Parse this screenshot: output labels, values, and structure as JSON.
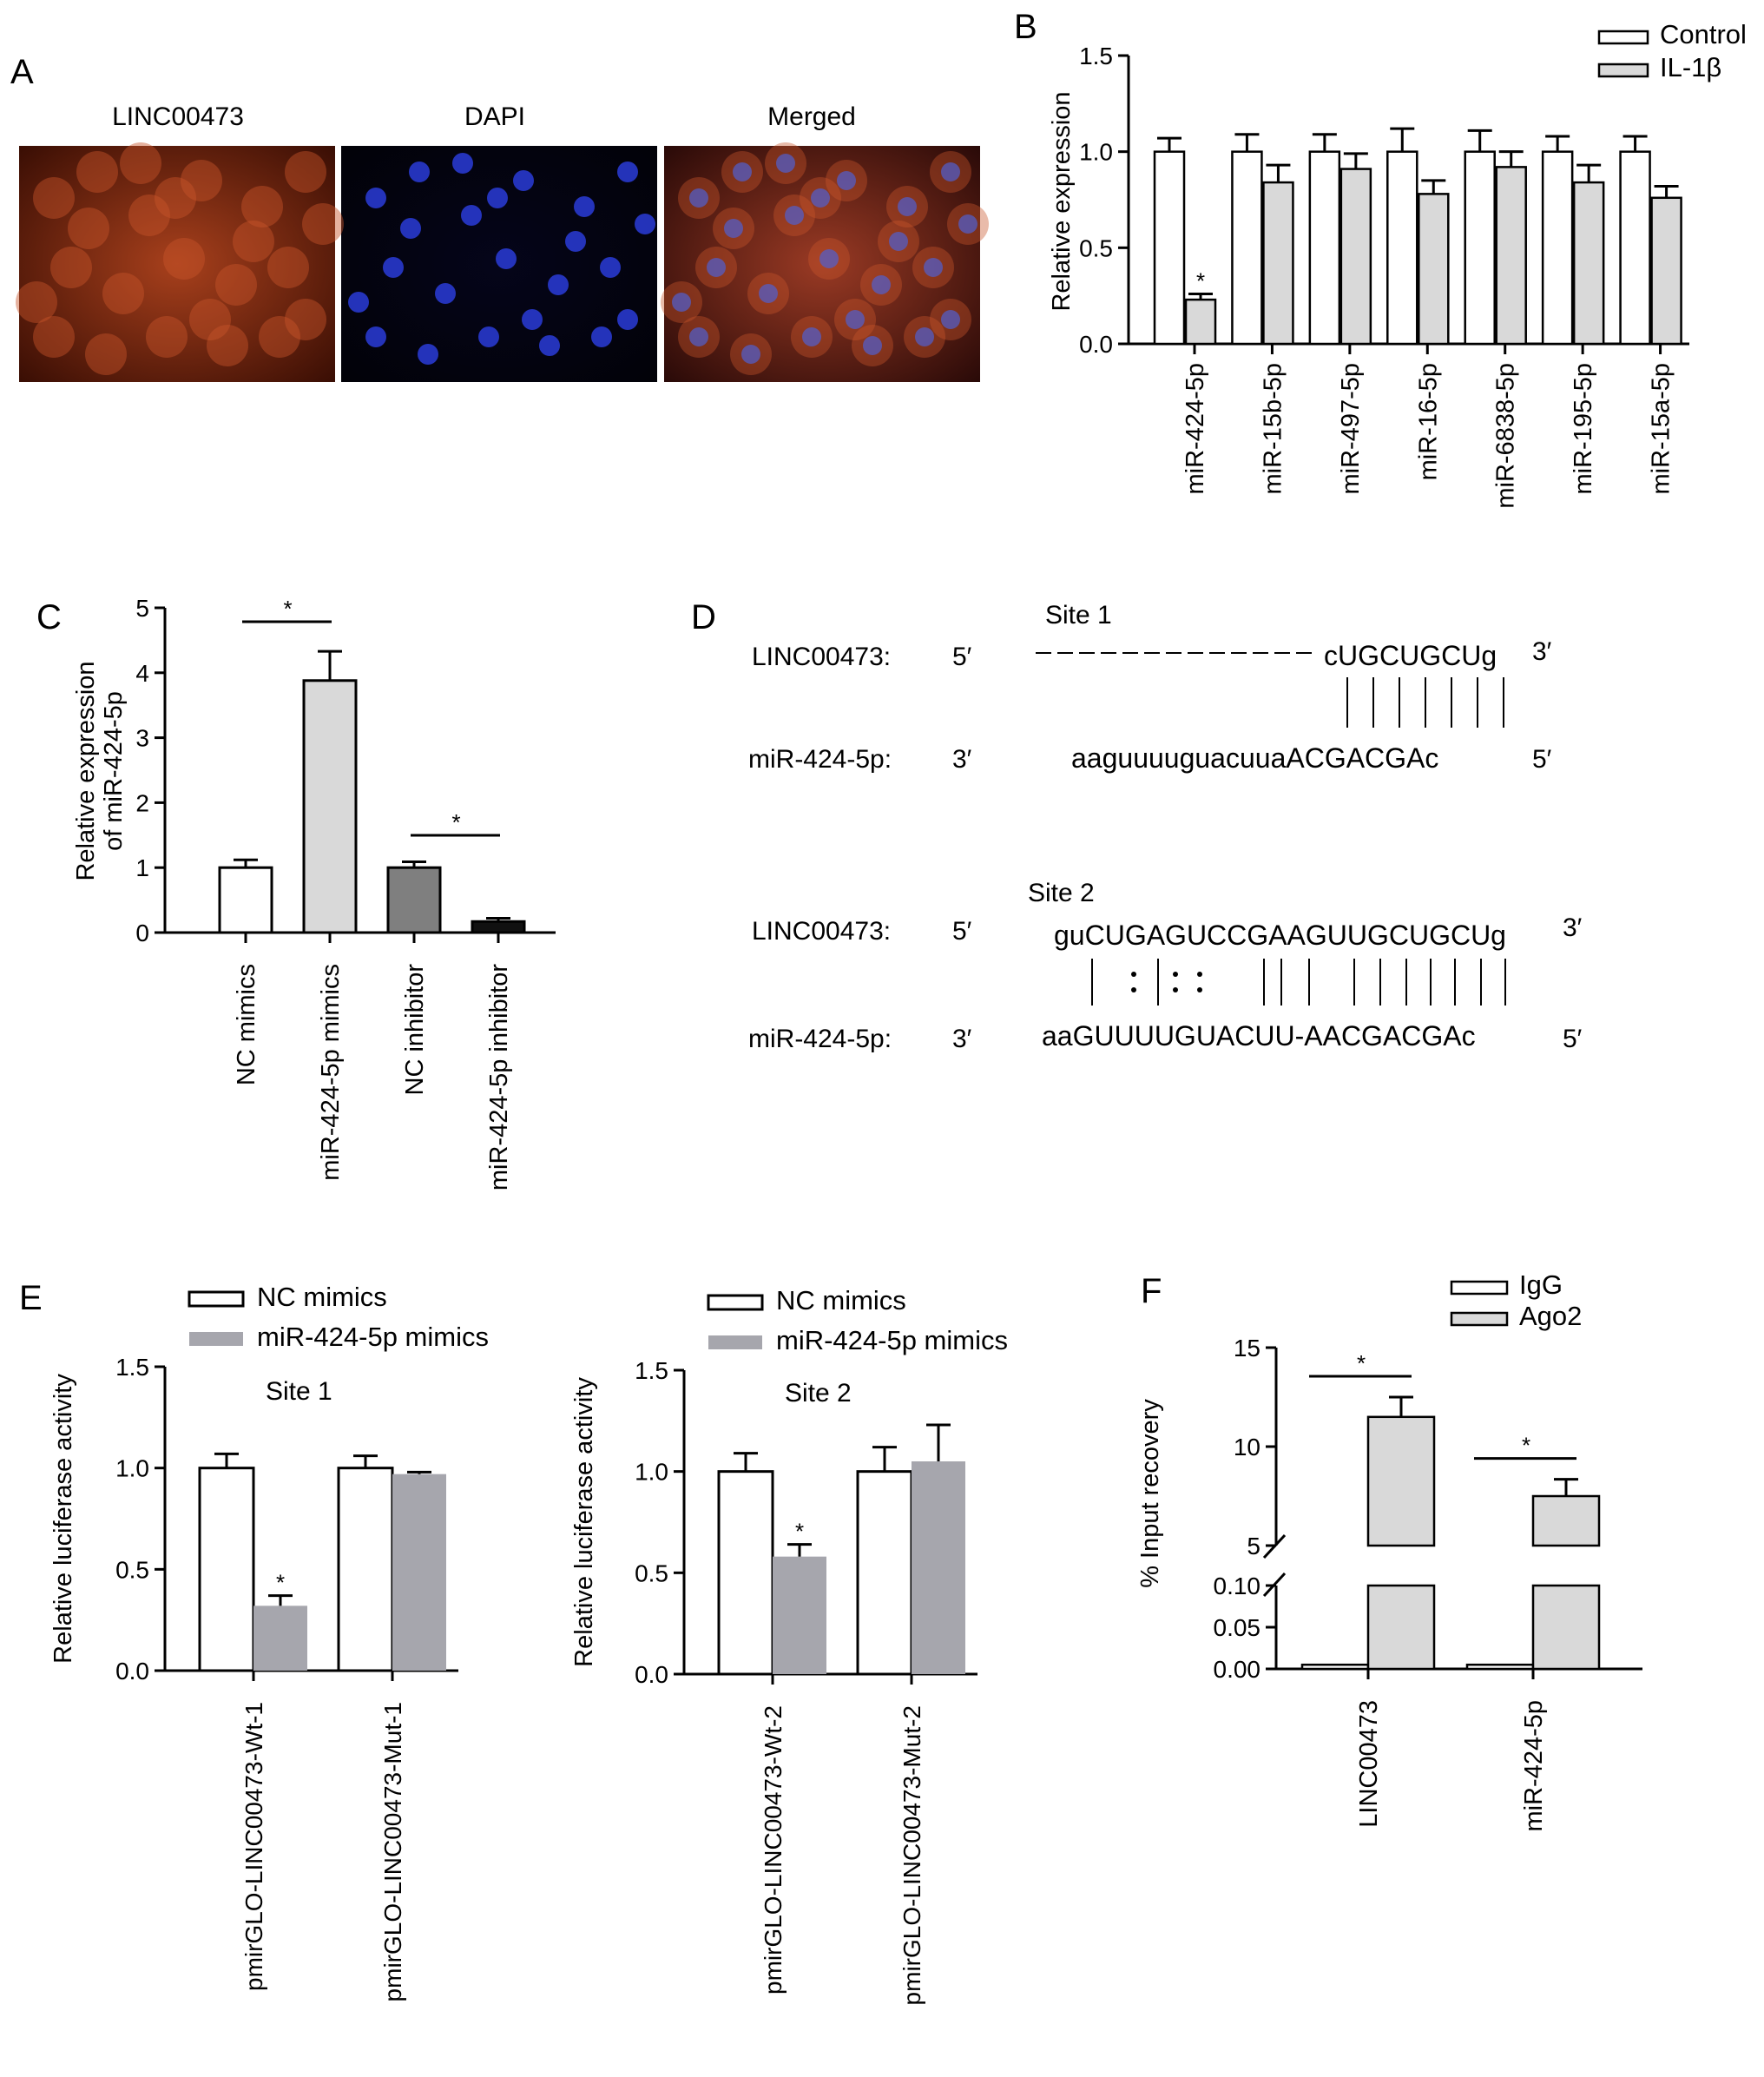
{
  "panels": {
    "A": {
      "letter": "A",
      "image_labels": [
        "LINC00473",
        "DAPI",
        "Merged"
      ],
      "colors": {
        "linc": "#8a2a10",
        "dapi": "#1a2a9a",
        "merged": "#7a2a3a"
      }
    },
    "B": {
      "letter": "B"
    },
    "C": {
      "letter": "C"
    },
    "D": {
      "letter": "D",
      "site1": {
        "title": "Site 1",
        "row1_label": "LINC00473:",
        "row1_end5": "5′",
        "row1_seq": "cUGCUGCUg",
        "row1_end3": "3′",
        "row2_label": "miR-424-5p:",
        "row2_end3": "3′",
        "row2_seq": "aaguuuuguacuuaACGACGAc",
        "row2_end5": "5′"
      },
      "site2": {
        "title": "Site 2",
        "row1_label": "LINC00473:",
        "row1_end5": "5′",
        "row1_seq": "guCUGAGUCCGAAGUUGCUGCUg",
        "row1_end3": "3′",
        "row2_label": "miR-424-5p:",
        "row2_end3": "3′",
        "row2_seq": "aaGUUUUGUACUU-AACGACGAc",
        "row2_end5": "5′"
      }
    },
    "E": {
      "letter": "E"
    },
    "F": {
      "letter": "F"
    }
  },
  "chart_data": [
    {
      "panel": "B",
      "type": "bar",
      "ylabel": "Relative expression",
      "ylim": [
        0,
        1.5
      ],
      "yticks": [
        "0.0",
        "0.5",
        "1.0",
        "1.5"
      ],
      "categories": [
        "miR-424-5p",
        "miR-15b-5p",
        "miR-497-5p",
        "miR-16-5p",
        "miR-6838-5p",
        "miR-195-5p",
        "miR-15a-5p"
      ],
      "series": [
        {
          "name": "Control",
          "values": [
            1.0,
            1.0,
            1.0,
            1.0,
            1.0,
            1.0,
            1.0
          ],
          "errors": [
            0.07,
            0.09,
            0.09,
            0.12,
            0.11,
            0.08,
            0.08
          ],
          "color": "#ffffff"
        },
        {
          "name": "IL-1β",
          "values": [
            0.23,
            0.84,
            0.91,
            0.78,
            0.92,
            0.84,
            0.76
          ],
          "errors": [
            0.03,
            0.09,
            0.08,
            0.07,
            0.08,
            0.09,
            0.06
          ],
          "color": "#d9d9d9"
        }
      ],
      "annotations": [
        {
          "text": "*",
          "category": "miR-424-5p",
          "series": "IL-1β"
        }
      ],
      "legend": "top-right"
    },
    {
      "panel": "C",
      "type": "bar",
      "ylabel_lines": [
        "Relative expression",
        "of miR-424-5p"
      ],
      "ylim": [
        0,
        5
      ],
      "yticks": [
        "0",
        "1",
        "2",
        "3",
        "4",
        "5"
      ],
      "categories": [
        "NC mimics",
        "miR-424-5p mimics",
        "NC inhibitor",
        "miR-424-5p inhibitor"
      ],
      "values": [
        1.0,
        3.88,
        1.0,
        0.17
      ],
      "errors": [
        0.12,
        0.45,
        0.09,
        0.05
      ],
      "colors": [
        "#ffffff",
        "#d9d9d9",
        "#7f7f7f",
        "#111111"
      ],
      "significance": [
        {
          "from": 0,
          "to": 1,
          "text": "*"
        },
        {
          "from": 2,
          "to": 3,
          "text": "*"
        }
      ]
    },
    {
      "panel": "E",
      "type": "bar",
      "title": "Site 1",
      "ylabel": "Relative luciferase activity",
      "ylim": [
        0,
        1.5
      ],
      "yticks": [
        "0.0",
        "0.5",
        "1.0",
        "1.5"
      ],
      "categories": [
        "pmirGLO-LINC00473-Wt-1",
        "pmirGLO-LINC00473-Mut-1"
      ],
      "series": [
        {
          "name": "NC mimics",
          "values": [
            1.0,
            1.0
          ],
          "errors": [
            0.07,
            0.06
          ],
          "color": "#ffffff"
        },
        {
          "name": "miR-424-5p mimics",
          "values": [
            0.32,
            0.97
          ],
          "errors": [
            0.05,
            0.01
          ],
          "color": "#a6a6ad"
        }
      ],
      "annotations": [
        {
          "text": "*",
          "category": "pmirGLO-LINC00473-Wt-1",
          "series": "miR-424-5p mimics"
        }
      ],
      "legend": "top"
    },
    {
      "panel": "E",
      "type": "bar",
      "title": "Site 2",
      "ylabel": "Relative luciferase activity",
      "ylim": [
        0,
        1.5
      ],
      "yticks": [
        "0.0",
        "0.5",
        "1.0",
        "1.5"
      ],
      "categories": [
        "pmirGLO-LINC00473-Wt-2",
        "pmirGLO-LINC00473-Mut-2"
      ],
      "series": [
        {
          "name": "NC mimics",
          "values": [
            1.0,
            1.0
          ],
          "errors": [
            0.09,
            0.12
          ],
          "color": "#ffffff"
        },
        {
          "name": "miR-424-5p mimics",
          "values": [
            0.58,
            1.05
          ],
          "errors": [
            0.06,
            0.18
          ],
          "color": "#a6a6ad"
        }
      ],
      "annotations": [
        {
          "text": "*",
          "category": "pmirGLO-LINC00473-Wt-2",
          "series": "miR-424-5p mimics"
        }
      ],
      "legend": "top"
    },
    {
      "panel": "F",
      "type": "bar",
      "ylabel": "% Input recovery",
      "broken_axis": true,
      "lower_ylim": [
        0,
        0.1
      ],
      "lower_yticks": [
        "0.00",
        "0.05",
        "0.10"
      ],
      "upper_ylim": [
        5,
        15
      ],
      "upper_yticks": [
        "5",
        "10",
        "15"
      ],
      "categories": [
        "LINC00473",
        "miR-424-5p"
      ],
      "series": [
        {
          "name": "IgG",
          "values": [
            0.005,
            0.005
          ],
          "errors": [
            0.002,
            0.002
          ],
          "color": "#ffffff"
        },
        {
          "name": "Ago2",
          "values": [
            11.5,
            7.5
          ],
          "errors": [
            1.0,
            0.85
          ],
          "color": "#d9d9d9"
        }
      ],
      "significance": [
        {
          "category": "LINC00473",
          "text": "*"
        },
        {
          "category": "miR-424-5p",
          "text": "*"
        }
      ],
      "legend": "top"
    }
  ]
}
